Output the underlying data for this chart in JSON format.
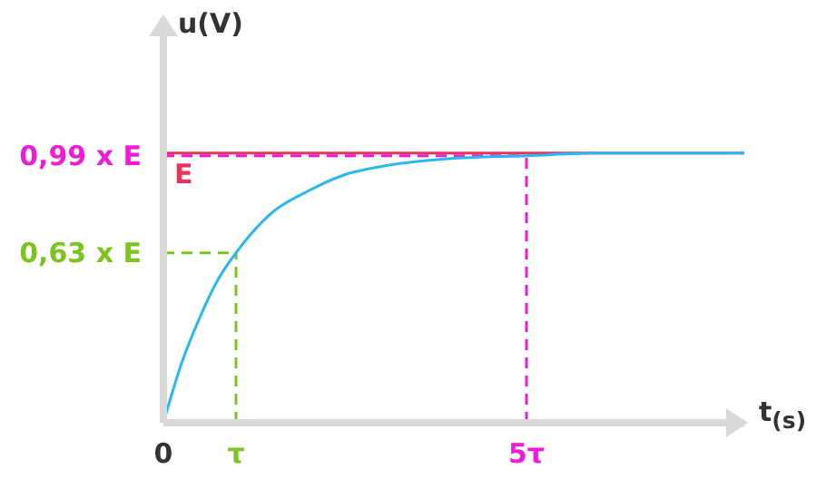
{
  "chart_data": {
    "type": "line",
    "xlabel": "t$_{(s)}$",
    "ylabel": "u(V)",
    "x": [
      0,
      0.25,
      0.5,
      0.75,
      1,
      1.5,
      2,
      2.5,
      3,
      4,
      5,
      6,
      7,
      8
    ],
    "series": [
      {
        "color": "#29b8f2",
        "values": [
          0,
          0.22,
          0.39,
          0.53,
          0.63,
          0.78,
          0.86,
          0.92,
          0.95,
          0.98,
          0.99,
          1,
          1,
          1
        ]
      }
    ],
    "xlim": [
      0,
      8
    ],
    "ylim": [
      0,
      1.5
    ],
    "xticks": [
      {
        "value": 0,
        "label": "0"
      },
      {
        "value": 1,
        "label": "τ"
      },
      {
        "value": 5,
        "label": "5τ"
      }
    ],
    "yticks": [
      {
        "value": 0.63,
        "label": "0,63 x E"
      },
      {
        "value": 0.99,
        "label": "0,99 x E"
      }
    ],
    "ref_lines": [
      {
        "axis": "y",
        "value": 1,
        "label": "E",
        "color": "#e8315b",
        "line_style": "solid"
      },
      {
        "axis": "y",
        "value": 0.99,
        "color": "#f01bd8",
        "line_style": "dashed"
      },
      {
        "axis": "x",
        "value": 5,
        "color": "#f01bd8",
        "line_style": "dashed"
      },
      {
        "axis": "y",
        "value": 0.63,
        "color": "#7cc41f",
        "line_style": "dashed"
      },
      {
        "axis": "x",
        "value": 1,
        "color": "#7cc41f",
        "line_style": "dashed"
      }
    ],
    "grid": false,
    "legend": false,
    "marker": "none",
    "line_style": "solid"
  }
}
